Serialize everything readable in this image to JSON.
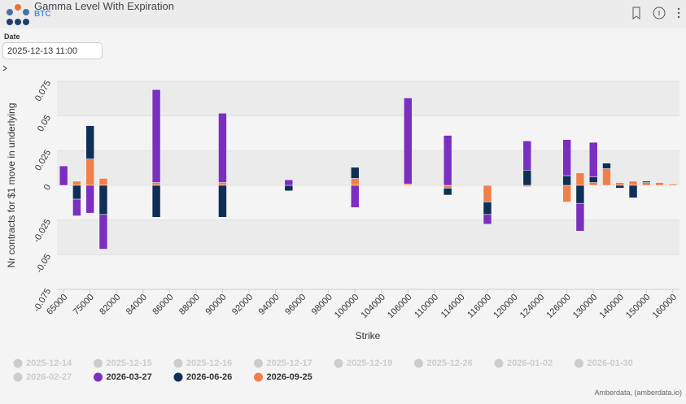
{
  "header": {
    "title": "Gamma Level With Expiration",
    "subtitle": "BTC"
  },
  "filter": {
    "label": "Date",
    "value": "2025-12-13 11:00"
  },
  "chart_data": {
    "type": "stacked-bar",
    "xlabel": "Strike",
    "ylabel": "Nr contracts for $1 move in underlying",
    "categories": [
      "65000",
      null,
      "75000",
      null,
      "82000",
      null,
      "84000",
      null,
      "86000",
      null,
      "88000",
      null,
      "90000",
      null,
      "92000",
      null,
      "94000",
      null,
      "96000",
      null,
      "98000",
      null,
      "100000",
      null,
      "104000",
      null,
      "106000",
      null,
      "110000",
      null,
      "114000",
      null,
      "116000",
      null,
      "120000",
      null,
      "124000",
      null,
      "126000",
      null,
      "130000",
      null,
      "140000",
      null,
      "150000",
      null,
      "160000"
    ],
    "series": [
      {
        "name": "2026-03-27",
        "color": "#7b2fbe",
        "values": [
          0.014,
          -0.012,
          -0.02,
          -0.025,
          null,
          null,
          null,
          0.067,
          null,
          null,
          null,
          null,
          0.05,
          null,
          null,
          null,
          null,
          0.004,
          null,
          null,
          null,
          null,
          -0.016,
          null,
          null,
          null,
          0.062,
          null,
          null,
          0.036,
          null,
          null,
          -0.007,
          null,
          null,
          0.021,
          null,
          null,
          0.026,
          -0.02,
          0.025,
          null,
          null,
          null,
          null,
          null,
          null
        ]
      },
      {
        "name": "2026-06-26",
        "color": "#0f2f57",
        "values": [
          null,
          -0.01,
          0.024,
          -0.021,
          null,
          null,
          null,
          -0.023,
          null,
          null,
          null,
          null,
          -0.023,
          null,
          null,
          null,
          null,
          -0.004,
          null,
          null,
          null,
          null,
          0.008,
          null,
          null,
          null,
          null,
          null,
          null,
          -0.005,
          null,
          null,
          -0.009,
          null,
          null,
          0.011,
          null,
          null,
          0.007,
          -0.013,
          0.004,
          0.004,
          -0.002,
          -0.009,
          0.001,
          null,
          null
        ]
      },
      {
        "name": "2026-09-25",
        "color": "#f07f4a",
        "values": [
          null,
          0.003,
          0.019,
          0.005,
          null,
          null,
          null,
          0.002,
          null,
          null,
          null,
          null,
          0.002,
          null,
          null,
          null,
          null,
          null,
          null,
          null,
          null,
          null,
          0.005,
          null,
          null,
          null,
          0.001,
          null,
          null,
          -0.002,
          null,
          null,
          -0.012,
          null,
          null,
          -0.001,
          null,
          null,
          -0.012,
          0.009,
          0.002,
          0.012,
          0.002,
          0.003,
          0.002,
          0.002,
          0.001
        ]
      }
    ],
    "inactive_series": [
      "2025-12-14",
      "2025-12-15",
      "2025-12-16",
      "2025-12-17",
      "2025-12-19",
      "2025-12-26",
      "2026-01-02",
      "2026-01-30",
      "2026-02-27"
    ],
    "ylim": [
      -0.075,
      0.075
    ],
    "yticks": [
      -0.075,
      -0.05,
      -0.025,
      0,
      0.025,
      0.05,
      0.075
    ],
    "grid": true,
    "credit": "Amberdata, (amberdata.io)"
  }
}
